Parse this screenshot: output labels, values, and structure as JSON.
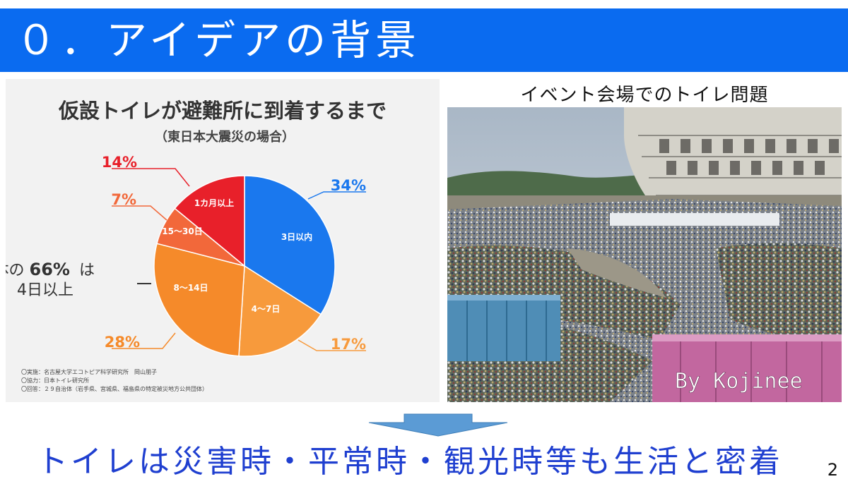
{
  "header": {
    "title": "０．アイデアの背景"
  },
  "chart": {
    "title": "仮設トイレが避難所に到着するまで",
    "subtitle": "（東日本大震災の場合）",
    "note_line1_prefix": "全体の",
    "note_percent": "66%",
    "note_line1_suffix": "は",
    "note_line2": "4日以上",
    "footnotes": [
      "〇実施：名古屋大学エコトピア科学研究所　岡山朋子",
      "〇協力：日本トイレ研究所",
      "〇回答：２９自治体（岩手県、宮城県、福島県の特定被災地方公共団体）"
    ],
    "colors": {
      "blue": "#1a78ee",
      "light_orange": "#f79a3c",
      "orange": "#f58a2a",
      "deep_orange": "#f2683a",
      "red": "#e8202a"
    }
  },
  "chart_data": {
    "type": "pie",
    "title": "仮設トイレが避難所に到着するまで",
    "subtitle": "（東日本大震災の場合）",
    "slices": [
      {
        "label": "3日以内",
        "value": 34,
        "display": "34%",
        "color": "#1a78ee"
      },
      {
        "label": "4～7日",
        "value": 17,
        "display": "17%",
        "color": "#f79a3c"
      },
      {
        "label": "8～14日",
        "value": 28,
        "display": "28%",
        "color": "#f58a2a"
      },
      {
        "label": "15～30日",
        "value": 7,
        "display": "7%",
        "color": "#f2683a"
      },
      {
        "label": "1カ月以上",
        "value": 14,
        "display": "14%",
        "color": "#e8202a"
      }
    ]
  },
  "photo": {
    "caption": "イベント会場でのトイレ問題",
    "watermark": "By Kojinee"
  },
  "conclusion": "トイレは災害時・平常時・観光時等も生活と密着",
  "page_number": "2"
}
